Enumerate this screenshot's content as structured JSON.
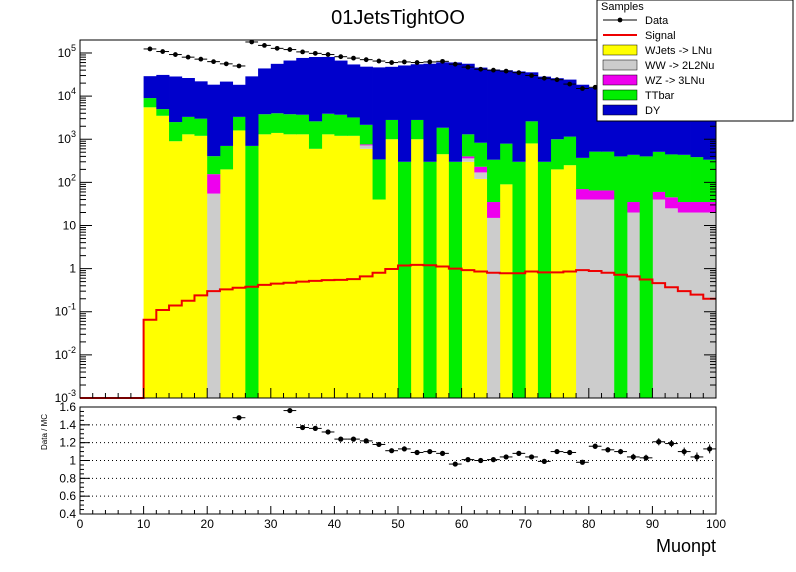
{
  "chart_data": [
    {
      "type": "bar",
      "stacked": true,
      "log_y": true,
      "title": "01JetsTightOO",
      "xlabel": "Muonpt",
      "ylabel": "",
      "xlim": [
        0,
        100
      ],
      "ylim": [
        0.001,
        200000
      ],
      "bin_width": 2,
      "bin_low_edges": [
        0,
        2,
        4,
        6,
        8,
        10,
        12,
        14,
        16,
        18,
        20,
        22,
        24,
        26,
        28,
        30,
        32,
        34,
        36,
        38,
        40,
        42,
        44,
        46,
        48,
        50,
        52,
        54,
        56,
        58,
        60,
        62,
        64,
        66,
        68,
        70,
        72,
        74,
        76,
        78,
        80,
        82,
        84,
        86,
        88,
        90,
        92,
        94,
        96,
        98
      ],
      "y_tick_labels": [
        "10^-3",
        "10^-2",
        "10^-1",
        "1",
        "10",
        "10^2",
        "10^3",
        "10^4",
        "10^5"
      ],
      "x_tick_labels": [
        "0",
        "10",
        "20",
        "30",
        "40",
        "50",
        "60",
        "70",
        "80",
        "90",
        "100"
      ],
      "legend": {
        "title": "Samples",
        "position": "top-right",
        "entries": [
          "Data",
          "Signal",
          "WJets -> LNu",
          "WW -> 2L2Nu",
          "WZ -> 3LNu",
          "TTbar",
          "DY"
        ]
      },
      "series": [
        {
          "name": "WJets -> LNu",
          "color": "#ffff00",
          "values": [
            0,
            0,
            0,
            0,
            0,
            5500,
            3500,
            900,
            1300,
            1200,
            0,
            200,
            1600,
            0,
            1300,
            1400,
            1300,
            1300,
            600,
            1300,
            1200,
            1200,
            600,
            40,
            1000,
            0,
            1000,
            0,
            450,
            0,
            300,
            120,
            0,
            90,
            0,
            800,
            0,
            200,
            250,
            0,
            0,
            0,
            0,
            0,
            0,
            0,
            0,
            0,
            0,
            0
          ]
        },
        {
          "name": "WW -> 2L2Nu",
          "color": "#cccccc",
          "values": [
            0,
            0,
            0,
            0,
            0,
            0,
            0,
            0,
            0,
            0,
            55,
            0,
            0,
            0,
            0,
            0,
            0,
            0,
            0,
            0,
            0,
            0,
            120,
            0,
            0,
            0,
            0,
            0,
            0,
            0,
            60,
            50,
            15,
            0,
            0,
            0,
            0,
            0,
            0,
            40,
            40,
            40,
            0,
            20,
            0,
            40,
            25,
            20,
            20,
            20
          ]
        },
        {
          "name": "WZ -> 3LNu",
          "color": "#ee00ee",
          "values": [
            0,
            0,
            0,
            0,
            0,
            0,
            0,
            0,
            0,
            0,
            100,
            0,
            0,
            0,
            0,
            0,
            0,
            0,
            0,
            0,
            0,
            0,
            40,
            0,
            0,
            0,
            0,
            0,
            0,
            0,
            40,
            60,
            20,
            0,
            0,
            0,
            0,
            0,
            0,
            30,
            25,
            25,
            0,
            15,
            0,
            20,
            20,
            15,
            15,
            15
          ]
        },
        {
          "name": "TTbar",
          "color": "#00ee00",
          "values": [
            0,
            0,
            0,
            0,
            0,
            3500,
            1500,
            1600,
            2000,
            1800,
            250,
            500,
            1700,
            700,
            2500,
            2600,
            2500,
            2400,
            2000,
            2600,
            2500,
            2000,
            1400,
            300,
            1800,
            300,
            1800,
            300,
            1400,
            300,
            900,
            600,
            300,
            700,
            300,
            1800,
            300,
            800,
            900,
            300,
            450,
            450,
            400,
            400,
            400,
            450,
            400,
            400,
            350,
            300
          ]
        },
        {
          "name": "DY",
          "color": "#0000cc",
          "values": [
            0,
            0,
            0,
            0,
            0,
            20000,
            26000,
            26000,
            23000,
            19000,
            18000,
            21000,
            15000,
            28000,
            40000,
            52000,
            63000,
            73000,
            78000,
            77000,
            63000,
            51000,
            46000,
            46000,
            45000,
            51000,
            52000,
            56000,
            59000,
            60000,
            55000,
            45000,
            41000,
            39000,
            37000,
            33000,
            28000,
            25000,
            23000,
            18000,
            15000,
            13000,
            11000,
            9500,
            7500,
            6000,
            5000,
            4000,
            3300,
            2800
          ]
        }
      ],
      "signal": {
        "name": "Signal",
        "color": "#ee0000",
        "values": [
          0.001,
          0.001,
          0.001,
          0.001,
          0.001,
          0.065,
          0.11,
          0.14,
          0.18,
          0.24,
          0.3,
          0.33,
          0.36,
          0.38,
          0.42,
          0.45,
          0.47,
          0.5,
          0.52,
          0.54,
          0.55,
          0.57,
          0.66,
          0.8,
          0.98,
          1.18,
          1.22,
          1.2,
          1.12,
          1.0,
          0.92,
          0.86,
          0.8,
          0.78,
          0.78,
          0.86,
          0.82,
          0.82,
          0.86,
          0.92,
          0.88,
          0.8,
          0.72,
          0.66,
          0.56,
          0.46,
          0.37,
          0.3,
          0.25,
          0.2
        ]
      },
      "data": {
        "name": "Data",
        "color": "#000000",
        "x": [
          11,
          13,
          15,
          17,
          19,
          21,
          23,
          25,
          27,
          29,
          31,
          33,
          35,
          37,
          39,
          41,
          43,
          45,
          47,
          49,
          51,
          53,
          55,
          57,
          59,
          61,
          63,
          65,
          67,
          69,
          71,
          73,
          75,
          77,
          79,
          81,
          83,
          85,
          87,
          89,
          91,
          93,
          95,
          97,
          99
        ],
        "values": [
          124000,
          108000,
          92000,
          80000,
          72000,
          63000,
          56000,
          50000,
          180000,
          150000,
          128000,
          120000,
          106000,
          98000,
          92000,
          82000,
          76000,
          70000,
          65000,
          60000,
          62000,
          60000,
          62000,
          64000,
          55000,
          47000,
          42000,
          40000,
          38000,
          35000,
          30000,
          26000,
          24000,
          19000,
          15000,
          16000,
          13500,
          11500,
          9000,
          7500,
          7300,
          6500,
          5200,
          4200,
          3800
        ]
      }
    },
    {
      "type": "scatter",
      "ylabel": "Data / MC",
      "xlabel": "Muonpt",
      "xlim": [
        0,
        100
      ],
      "ylim": [
        0.4,
        1.6
      ],
      "grid": true,
      "y_tick_labels": [
        "0.4",
        "0.6",
        "0.8",
        "1",
        "1.2",
        "1.4",
        "1.6"
      ],
      "x_tick_labels": [
        "0",
        "10",
        "20",
        "30",
        "40",
        "50",
        "60",
        "70",
        "80",
        "90",
        "100"
      ],
      "x": [
        25,
        33,
        35,
        37,
        39,
        41,
        43,
        45,
        47,
        49,
        51,
        53,
        55,
        57,
        59,
        61,
        63,
        65,
        67,
        69,
        71,
        73,
        75,
        77,
        79,
        81,
        83,
        85,
        87,
        89,
        91,
        93,
        95,
        97,
        99
      ],
      "values": [
        1.48,
        1.56,
        1.37,
        1.36,
        1.32,
        1.24,
        1.24,
        1.22,
        1.18,
        1.11,
        1.13,
        1.09,
        1.1,
        1.08,
        0.96,
        1.01,
        1.0,
        1.01,
        1.04,
        1.08,
        1.04,
        0.99,
        1.1,
        1.09,
        0.98,
        1.16,
        1.12,
        1.1,
        1.04,
        1.03,
        1.21,
        1.19,
        1.1,
        1.04,
        1.13
      ],
      "errors": [
        0.015,
        0.015,
        0.015,
        0.015,
        0.015,
        0.015,
        0.015,
        0.015,
        0.02,
        0.02,
        0.02,
        0.02,
        0.02,
        0.02,
        0.02,
        0.02,
        0.02,
        0.02,
        0.02,
        0.02,
        0.02,
        0.02,
        0.025,
        0.025,
        0.025,
        0.03,
        0.03,
        0.03,
        0.035,
        0.035,
        0.04,
        0.04,
        0.045,
        0.05,
        0.05
      ]
    }
  ]
}
